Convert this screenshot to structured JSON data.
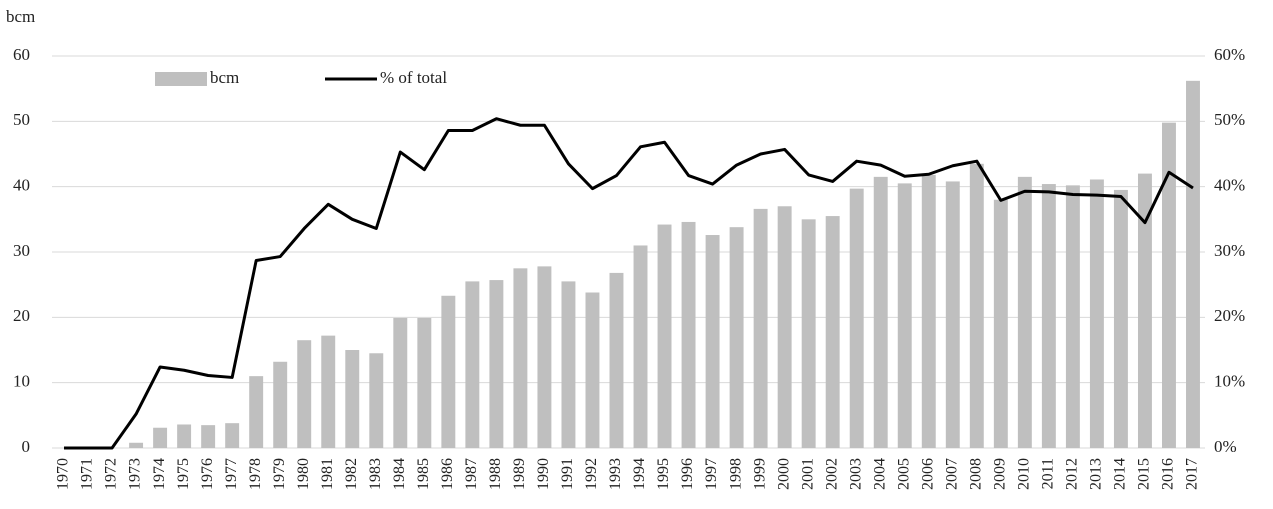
{
  "chart_data": {
    "type": "bar_line",
    "y_label": "bcm",
    "categories": [
      "1970",
      "1971",
      "1972",
      "1973",
      "1974",
      "1975",
      "1976",
      "1977",
      "1978",
      "1979",
      "1980",
      "1981",
      "1982",
      "1983",
      "1984",
      "1985",
      "1986",
      "1987",
      "1988",
      "1989",
      "1990",
      "1991",
      "1992",
      "1993",
      "1994",
      "1995",
      "1996",
      "1997",
      "1998",
      "1999",
      "2000",
      "2001",
      "2002",
      "2003",
      "2004",
      "2005",
      "2006",
      "2007",
      "2008",
      "2009",
      "2010",
      "2011",
      "2012",
      "2013",
      "2014",
      "2015",
      "2016",
      "2017"
    ],
    "series": [
      {
        "name": "bcm",
        "color": "#bfbfbf",
        "type": "bar",
        "values": [
          0,
          0,
          0,
          0.8,
          3.1,
          3.6,
          3.5,
          3.8,
          11,
          13.2,
          16.5,
          17.2,
          15,
          14.5,
          19.9,
          19.9,
          23.3,
          25.5,
          25.7,
          27.5,
          27.8,
          25.5,
          23.8,
          26.8,
          31,
          34.2,
          34.6,
          32.6,
          33.8,
          36.6,
          37,
          35,
          35.5,
          39.7,
          41.5,
          40.5,
          41.8,
          40.8,
          43.5,
          38,
          41.5,
          40.4,
          40.2,
          41.1,
          39.5,
          42,
          49.8,
          56.2
        ]
      },
      {
        "name": "% of total",
        "color": "#000000",
        "type": "line",
        "axis": "y2",
        "values": [
          0,
          0,
          0,
          5.2,
          12.4,
          11.9,
          11.1,
          10.8,
          28.7,
          29.3,
          33.6,
          37.3,
          35,
          33.6,
          45.3,
          42.6,
          48.6,
          48.6,
          50.4,
          49.4,
          49.4,
          43.5,
          39.7,
          41.7,
          46.1,
          46.8,
          41.7,
          40.4,
          43.3,
          45,
          45.7,
          41.8,
          40.8,
          43.9,
          43.3,
          41.6,
          41.9,
          43.2,
          43.9,
          37.9,
          39.3,
          39.2,
          38.8,
          38.7,
          38.5,
          34.5,
          42.2,
          39.8
        ]
      }
    ],
    "ylim": [
      0,
      60
    ],
    "yticks": [
      0,
      10,
      20,
      30,
      40,
      50,
      60
    ],
    "y2lim": [
      0,
      60
    ],
    "y2ticks": [
      {
        "value": 0,
        "label": "0%"
      },
      {
        "value": 10,
        "label": "10%"
      },
      {
        "value": 20,
        "label": "20%"
      },
      {
        "value": 30,
        "label": "30%"
      },
      {
        "value": 40,
        "label": "40%"
      },
      {
        "value": 50,
        "label": "50%"
      },
      {
        "value": 60,
        "label": "60%"
      }
    ],
    "grid": true
  }
}
